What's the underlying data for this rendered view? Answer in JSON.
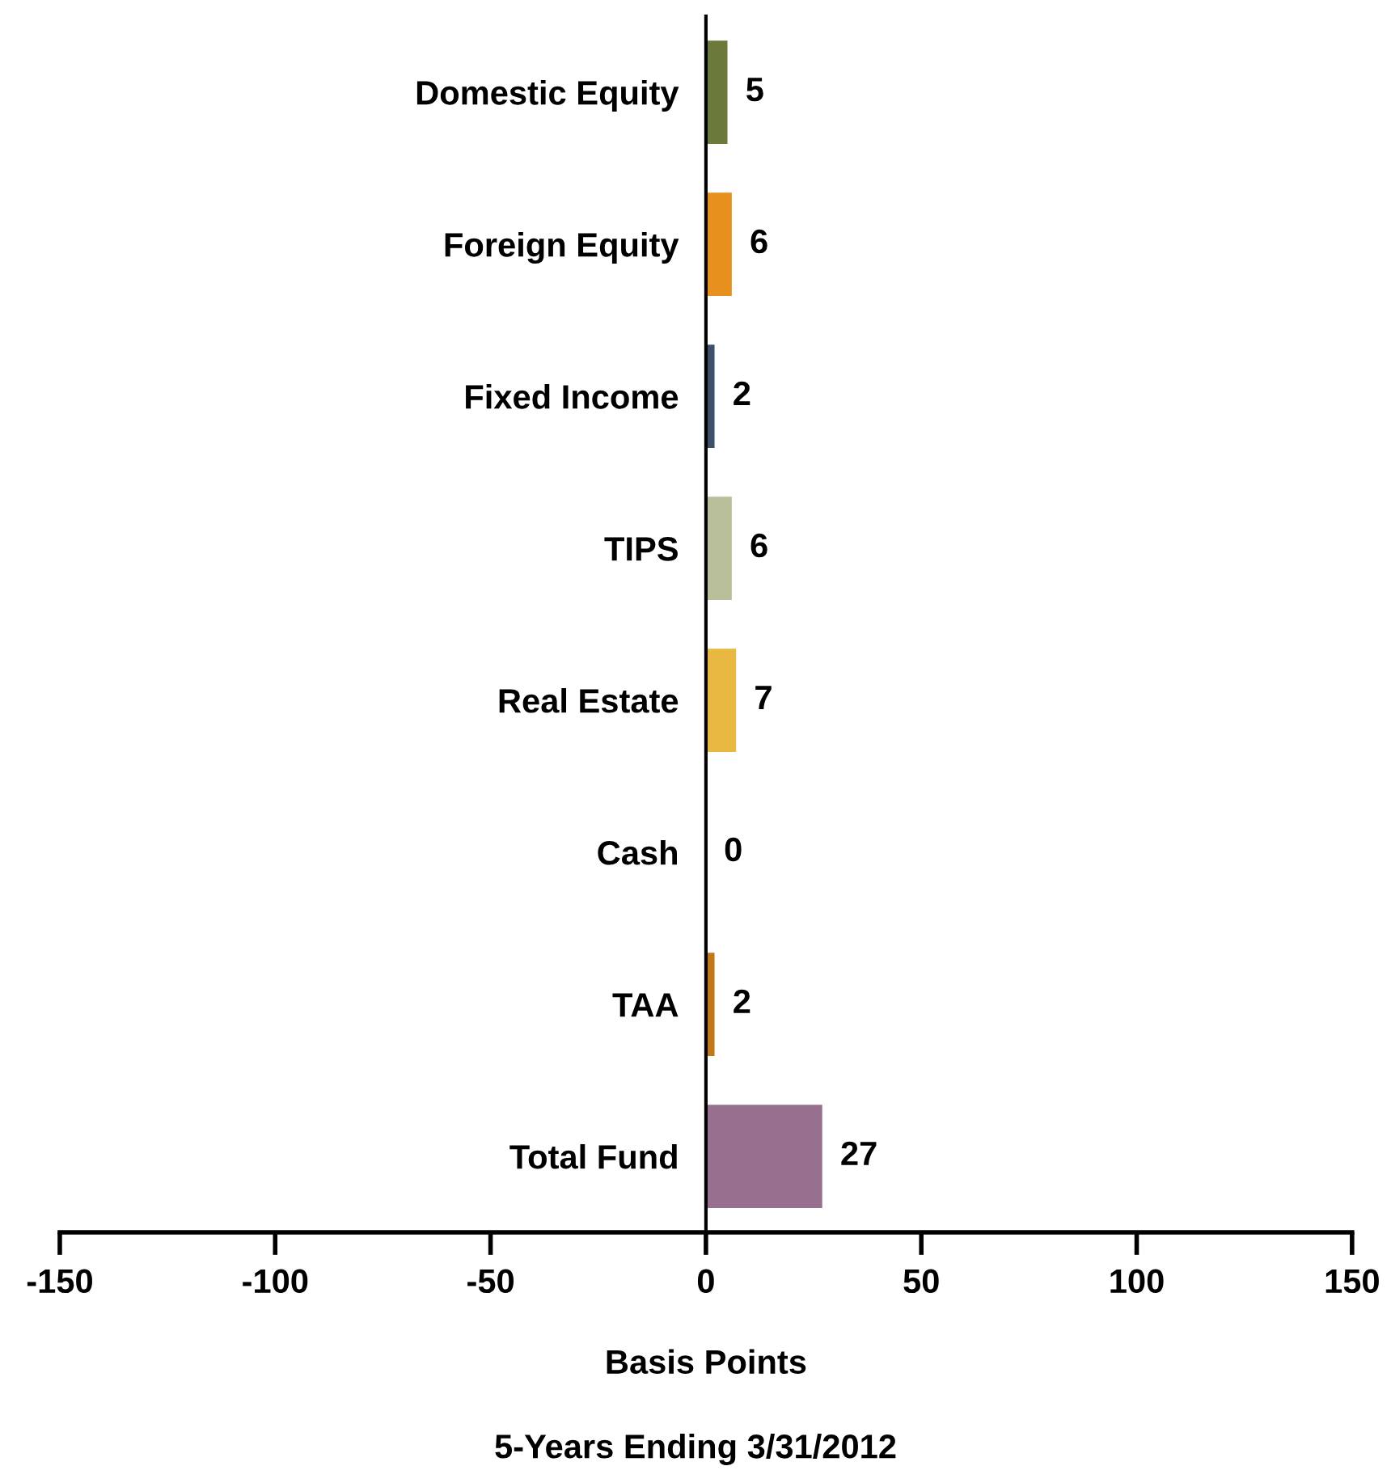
{
  "chart_data": {
    "type": "bar",
    "orientation": "horizontal",
    "categories": [
      "Domestic Equity",
      "Foreign Equity",
      "Fixed Income",
      "TIPS",
      "Real Estate",
      "Cash",
      "TAA",
      "Total Fund"
    ],
    "values": [
      5,
      6,
      2,
      6,
      7,
      0,
      2,
      27
    ],
    "colors": [
      "#6b7a3a",
      "#e8901e",
      "#3d5068",
      "#b8bf9a",
      "#e8b840",
      "#7f7f7f",
      "#c07818",
      "#98708f"
    ],
    "xlim": [
      -150,
      150
    ],
    "xticks": [
      -150,
      -100,
      -50,
      0,
      50,
      100,
      150
    ],
    "xlabel": "Basis Points",
    "annotations": [
      "5-Years Ending 3/31/2012"
    ],
    "data_labels": true,
    "grid": false,
    "legend": false
  }
}
